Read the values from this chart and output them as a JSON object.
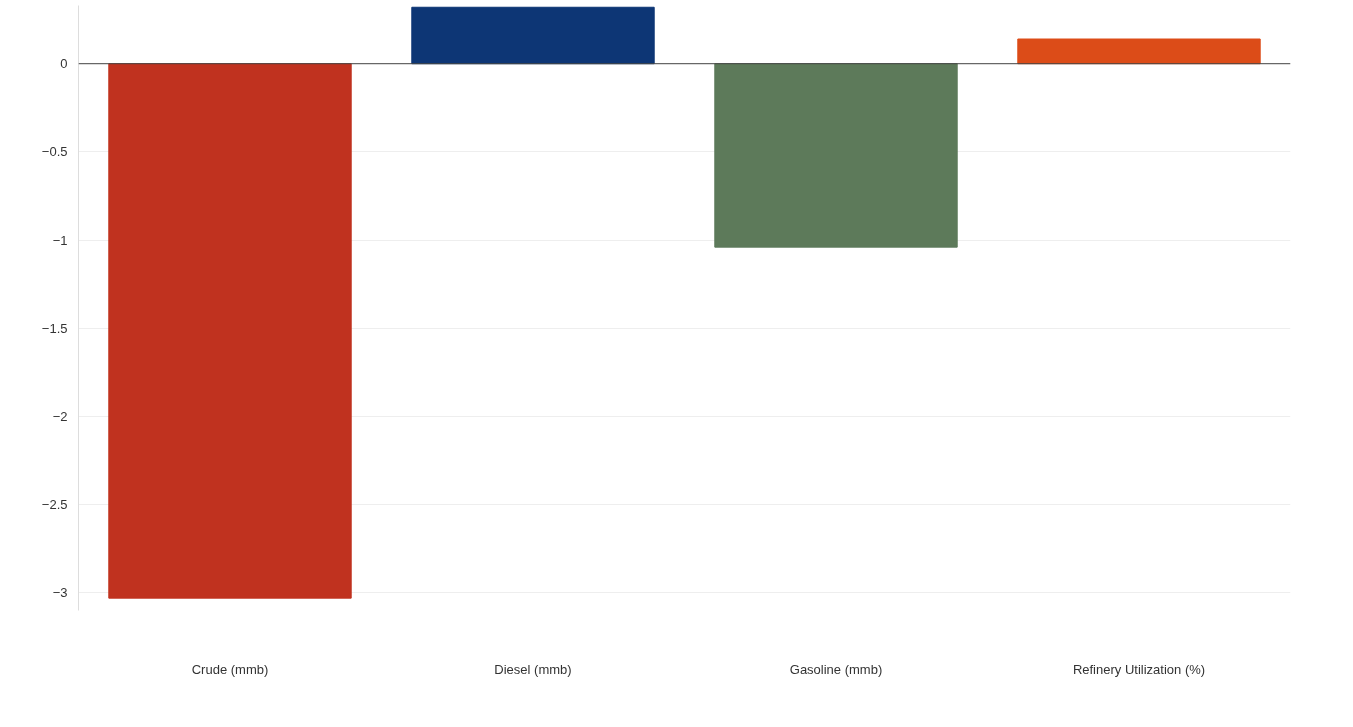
{
  "chart_data": {
    "type": "bar",
    "categories": [
      "Crude (mmb)",
      "Diesel (mmb)",
      "Gasoline (mmb)",
      "Refinery Utilization (%)"
    ],
    "values": [
      -3.03,
      0.32,
      -1.04,
      0.14
    ],
    "colors": [
      "#c0321f",
      "#0d3675",
      "#5d7a5a",
      "#dc4c18"
    ],
    "ylim": [
      -3.1,
      0.33
    ],
    "yticks": [
      {
        "value": -3,
        "label": "−3"
      },
      {
        "value": -2.5,
        "label": "−2.5"
      },
      {
        "value": -2,
        "label": "−2"
      },
      {
        "value": -1.5,
        "label": "−1.5"
      },
      {
        "value": -1,
        "label": "−1"
      },
      {
        "value": -0.5,
        "label": "−0.5"
      },
      0
    ],
    "grid": "y"
  }
}
